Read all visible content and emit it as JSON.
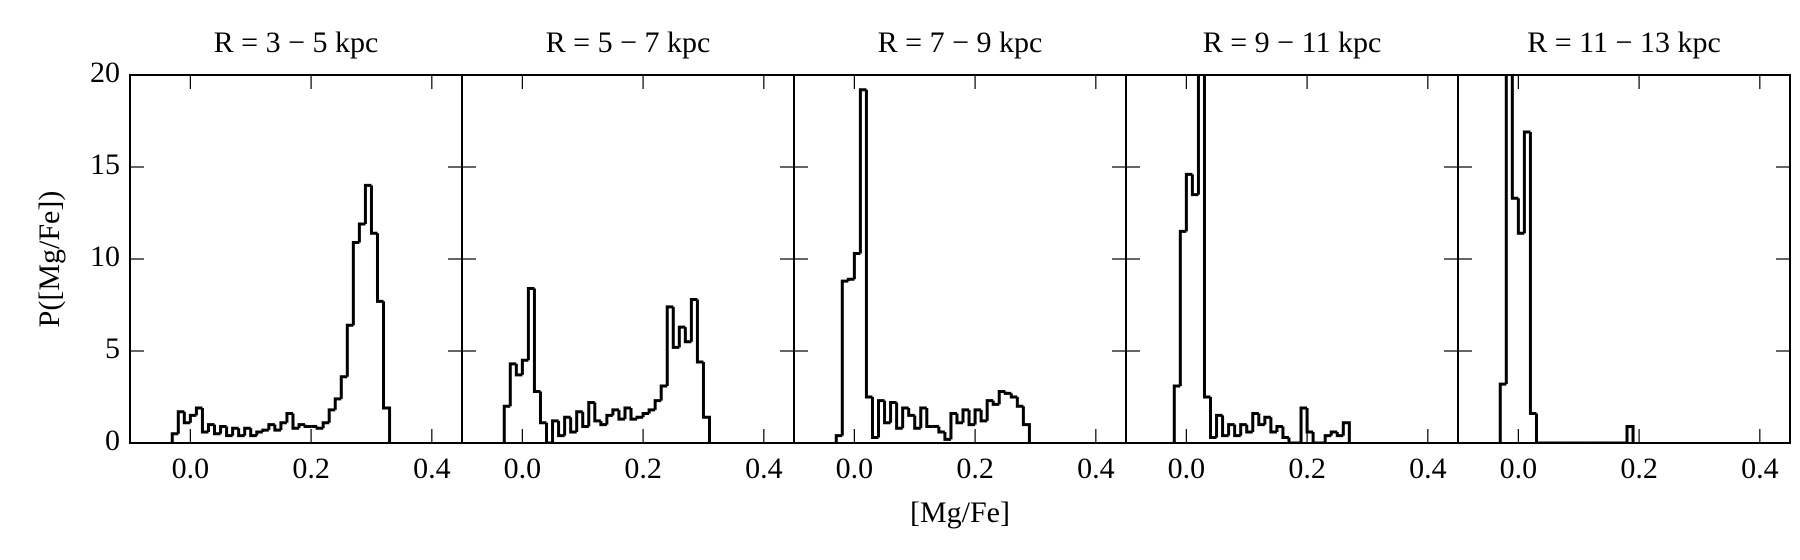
{
  "chart_data": [
    {
      "type": "histogram",
      "title": "R = 3 − 5 kpc",
      "ylabel": "P([Mg/Fe])",
      "color": "#000000",
      "bins": [
        -0.03,
        -0.02,
        -0.01,
        0.0,
        0.01,
        0.02,
        0.03,
        0.04,
        0.05,
        0.06,
        0.07,
        0.08,
        0.09,
        0.1,
        0.11,
        0.12,
        0.13,
        0.14,
        0.15,
        0.16,
        0.17,
        0.18,
        0.19,
        0.2,
        0.21,
        0.22,
        0.23,
        0.24,
        0.25,
        0.26,
        0.27,
        0.28,
        0.29,
        0.3,
        0.31,
        0.32,
        0.33
      ],
      "values": [
        0.5,
        1.7,
        1.1,
        1.5,
        1.9,
        0.6,
        1.0,
        0.5,
        0.9,
        0.4,
        0.8,
        0.4,
        0.8,
        0.4,
        0.6,
        0.7,
        1.0,
        0.7,
        1.1,
        1.6,
        0.8,
        1.0,
        0.9,
        0.9,
        0.8,
        1.1,
        1.8,
        2.4,
        3.6,
        6.4,
        10.9,
        11.9,
        14.0,
        11.4,
        7.7,
        1.9
      ],
      "xlim": [
        -0.1,
        0.45
      ],
      "ylim": [
        0,
        20
      ],
      "xticks": [
        {
          "value": 0,
          "label": "0.0"
        },
        0.2,
        0.4
      ],
      "yticks": [
        0,
        5,
        10,
        15,
        20
      ]
    },
    {
      "type": "histogram",
      "title": "R = 5 − 7 kpc",
      "color": "#000000",
      "bins": [
        -0.03,
        -0.02,
        -0.01,
        0.0,
        0.01,
        0.02,
        0.03,
        0.04,
        0.05,
        0.06,
        0.07,
        0.08,
        0.09,
        0.1,
        0.11,
        0.12,
        0.13,
        0.14,
        0.15,
        0.16,
        0.17,
        0.18,
        0.19,
        0.2,
        0.21,
        0.22,
        0.23,
        0.24,
        0.25,
        0.26,
        0.27,
        0.28,
        0.29,
        0.3,
        0.31
      ],
      "values": [
        2.0,
        4.3,
        3.7,
        4.5,
        8.4,
        2.8,
        1.1,
        0.0,
        1.2,
        0.4,
        1.4,
        0.6,
        1.7,
        0.9,
        2.2,
        1.2,
        1.0,
        1.5,
        1.8,
        1.3,
        1.9,
        1.3,
        1.4,
        1.6,
        1.8,
        2.3,
        3.1,
        7.4,
        5.2,
        6.3,
        5.5,
        7.8,
        4.4,
        1.4
      ],
      "xlim": [
        -0.1,
        0.45
      ],
      "ylim": [
        0,
        20
      ],
      "xticks": [
        {
          "value": 0,
          "label": "0.0"
        },
        0.2,
        0.4
      ],
      "yticks": [
        0,
        5,
        10,
        15,
        20
      ]
    },
    {
      "type": "histogram",
      "title": "R = 7 − 9 kpc",
      "xlabel": "[Mg/Fe]",
      "color": "#000000",
      "bins": [
        -0.03,
        -0.02,
        -0.01,
        0.0,
        0.01,
        0.02,
        0.03,
        0.04,
        0.05,
        0.06,
        0.07,
        0.08,
        0.09,
        0.1,
        0.11,
        0.12,
        0.13,
        0.14,
        0.15,
        0.16,
        0.17,
        0.18,
        0.19,
        0.2,
        0.21,
        0.22,
        0.23,
        0.24,
        0.25,
        0.26,
        0.27,
        0.28,
        0.29
      ],
      "values": [
        0.4,
        8.8,
        8.9,
        10.3,
        19.2,
        2.5,
        0.3,
        2.3,
        1.1,
        2.2,
        0.8,
        1.9,
        1.5,
        0.8,
        1.9,
        0.9,
        0.9,
        0.6,
        0.2,
        1.6,
        1.1,
        1.8,
        1.0,
        1.8,
        1.2,
        2.3,
        2.1,
        2.8,
        2.7,
        2.5,
        2.0,
        1.0
      ],
      "xlim": [
        -0.1,
        0.45
      ],
      "ylim": [
        0,
        20
      ],
      "xticks": [
        {
          "value": 0,
          "label": "0.0"
        },
        0.2,
        0.4
      ],
      "yticks": [
        0,
        5,
        10,
        15,
        20
      ]
    },
    {
      "type": "histogram",
      "title": "R = 9 − 11 kpc",
      "color": "#000000",
      "bins": [
        -0.02,
        -0.01,
        0.0,
        0.01,
        0.02,
        0.03,
        0.04,
        0.05,
        0.06,
        0.07,
        0.08,
        0.09,
        0.1,
        0.11,
        0.12,
        0.13,
        0.14,
        0.15,
        0.16,
        0.17,
        0.18,
        0.19,
        0.2,
        0.21,
        0.22,
        0.23,
        0.24,
        0.25,
        0.26,
        0.27
      ],
      "values": [
        3.1,
        11.5,
        14.6,
        13.5,
        21,
        2.5,
        0.3,
        1.5,
        0.4,
        1.0,
        0.4,
        1.0,
        0.6,
        1.6,
        1.0,
        1.4,
        0.6,
        0.9,
        0.3,
        0.0,
        0.0,
        1.9,
        0.6,
        0.0,
        0.0,
        0.4,
        0.6,
        0.4,
        1.1
      ],
      "xlim": [
        -0.1,
        0.45
      ],
      "ylim": [
        0,
        20
      ],
      "xticks": [
        {
          "value": 0,
          "label": "0.0"
        },
        0.2,
        0.4
      ],
      "yticks": [
        0,
        5,
        10,
        15,
        20
      ]
    },
    {
      "type": "histogram",
      "title": "R = 11 − 13 kpc",
      "color": "#000000",
      "bins": [
        -0.03,
        -0.02,
        -0.01,
        0.0,
        0.01,
        0.02,
        0.03,
        0.04,
        0.05,
        0.06,
        0.07,
        0.08,
        0.09,
        0.1,
        0.11,
        0.12,
        0.13,
        0.14,
        0.15,
        0.16,
        0.17,
        0.18,
        0.19
      ],
      "values": [
        3.2,
        22,
        13.3,
        11.4,
        16.9,
        1.6,
        0,
        0,
        0,
        0,
        0,
        0,
        0,
        0,
        0,
        0,
        0,
        0,
        0,
        0,
        0,
        0.9
      ],
      "xlim": [
        -0.1,
        0.45
      ],
      "ylim": [
        0,
        20
      ],
      "xticks": [
        {
          "value": 0,
          "label": "0.0"
        },
        0.2,
        0.4
      ],
      "yticks": [
        0,
        5,
        10,
        15,
        20
      ]
    }
  ]
}
